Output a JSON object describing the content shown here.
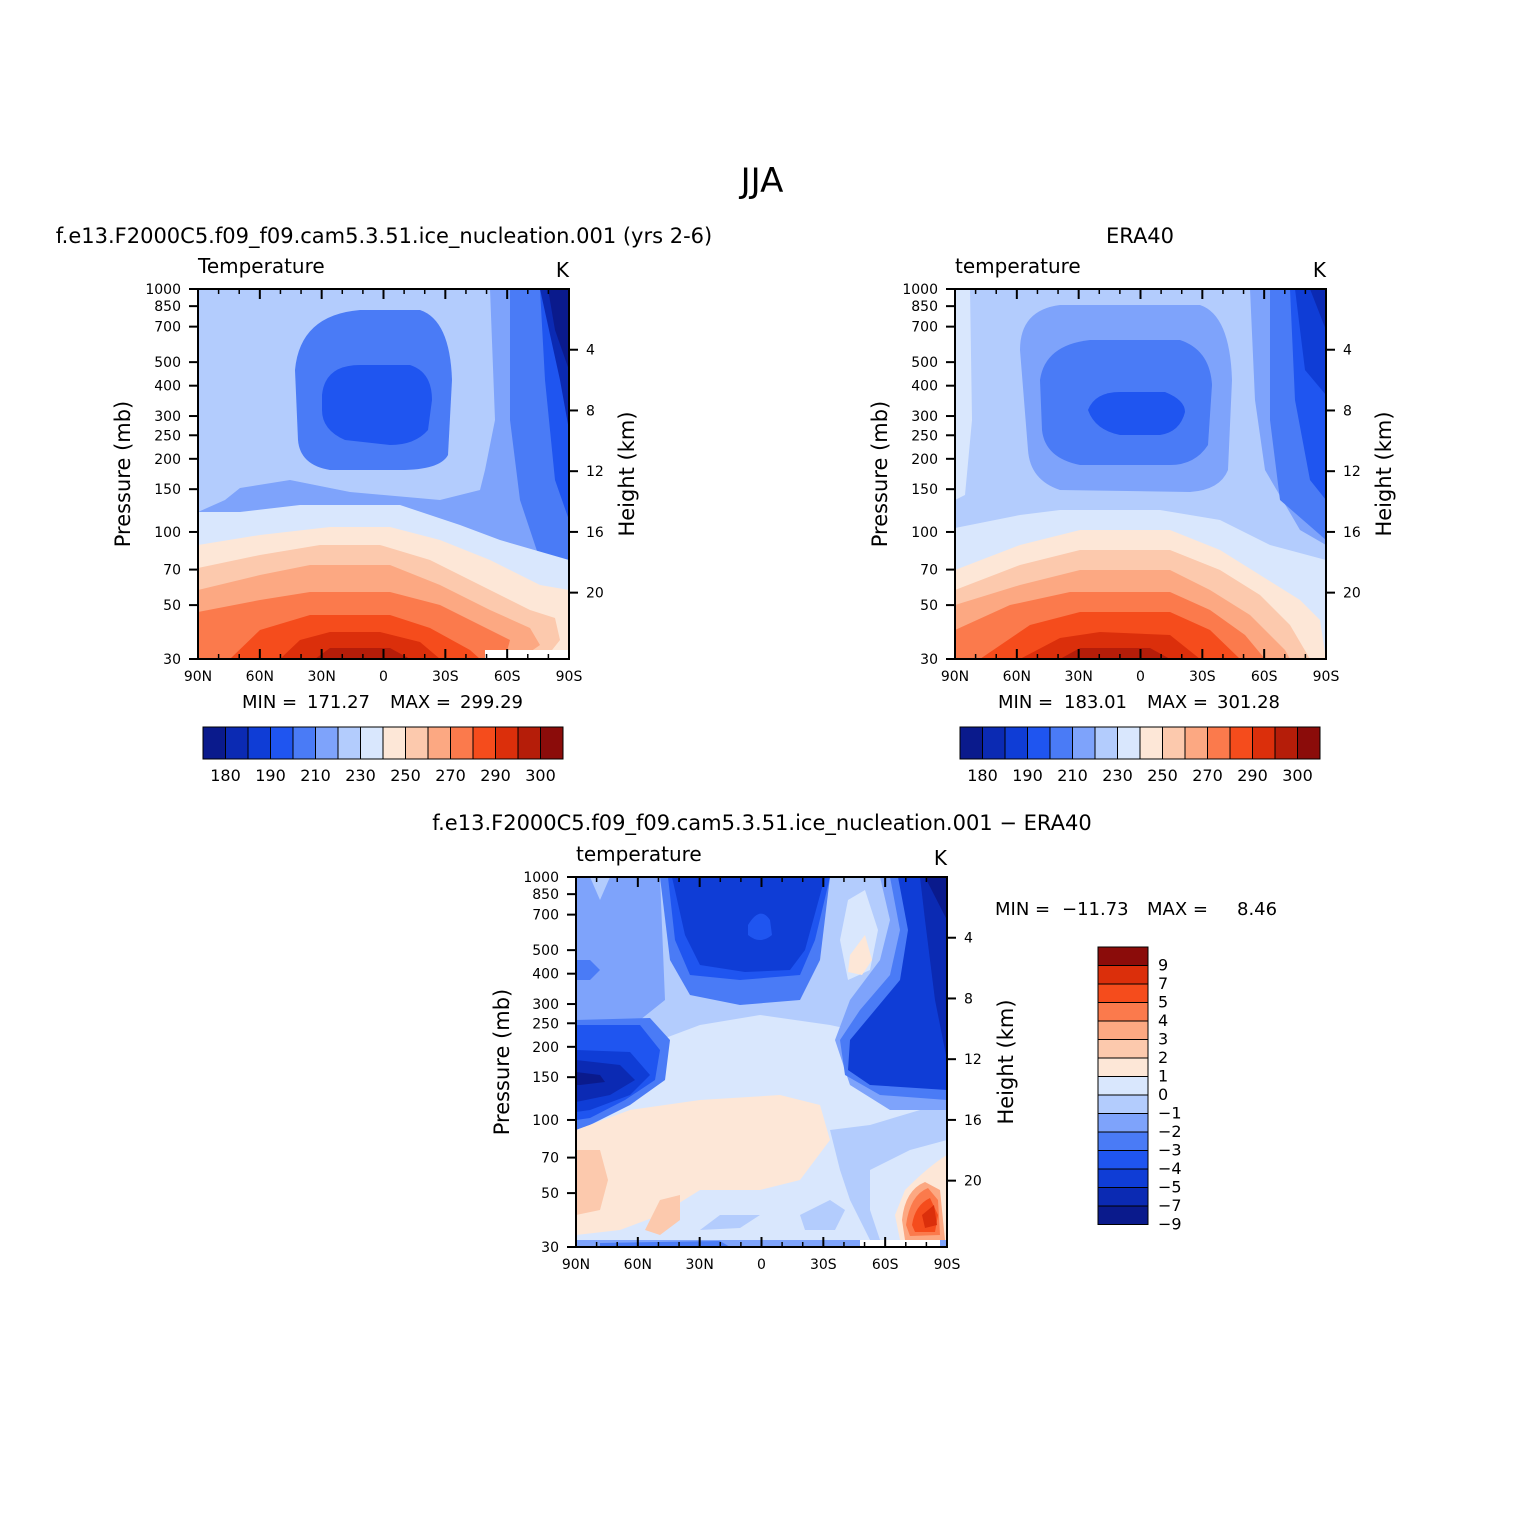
{
  "page": {
    "title": "JJA"
  },
  "colors": {
    "palette14": [
      "#0a1a8c",
      "#0b2ab3",
      "#0f3dd6",
      "#1f55f0",
      "#4a7bf6",
      "#7ea3fb",
      "#b3ccfd",
      "#d9e7fd",
      "#fde7d7",
      "#fcc9ad",
      "#fca882",
      "#fb7a4c",
      "#f54c1c",
      "#db2f0b",
      "#b51d09",
      "#8b0c0a"
    ],
    "diff13": [
      "#0a1a8c",
      "#0b2ab3",
      "#0f3dd6",
      "#1f55f0",
      "#4a7bf6",
      "#7ea3fb",
      "#b3ccfd",
      "#d9e7fd",
      "#fde7d7",
      "#fcc9ad",
      "#fca882",
      "#fb7a4c",
      "#f54c1c",
      "#db2f0b",
      "#8b0c0a"
    ]
  },
  "chart_data": [
    {
      "type": "heatmap",
      "id": "model",
      "title": "f.e13.F2000C5.f09_f09.cam5.3.51.ice_nucleation.001 (yrs 2-6)",
      "left_label": "Temperature",
      "right_label": "K",
      "xlabel": "",
      "ylabel": "Pressure (mb)",
      "ylabel_right": "Height (km)",
      "x_ticks": [
        "90N",
        "60N",
        "30N",
        "0",
        "30S",
        "60S",
        "90S"
      ],
      "x_values": [
        90,
        60,
        30,
        0,
        -30,
        -60,
        -90
      ],
      "y_ticks": [
        30,
        50,
        70,
        100,
        150,
        200,
        250,
        300,
        400,
        500,
        700,
        850,
        1000
      ],
      "y_right_ticks": [
        4,
        8,
        12,
        16,
        20
      ],
      "ylim": [
        1000,
        30
      ],
      "min_label": "MIN =",
      "min": "171.27",
      "max_label": "MAX =",
      "max": "299.29",
      "colorbar_labels": [
        "180",
        "190",
        "210",
        "230",
        "250",
        "270",
        "290",
        "300"
      ]
    },
    {
      "type": "heatmap",
      "id": "obs",
      "title": "ERA40",
      "left_label": "temperature",
      "right_label": "K",
      "ylabel": "Pressure (mb)",
      "ylabel_right": "Height (km)",
      "x_ticks": [
        "90N",
        "60N",
        "30N",
        "0",
        "30S",
        "60S",
        "90S"
      ],
      "y_ticks": [
        30,
        50,
        70,
        100,
        150,
        200,
        250,
        300,
        400,
        500,
        700,
        850,
        1000
      ],
      "y_right_ticks": [
        4,
        8,
        12,
        16,
        20
      ],
      "ylim": [
        1000,
        30
      ],
      "min_label": "MIN =",
      "min": "183.01",
      "max_label": "MAX =",
      "max": "301.28",
      "colorbar_labels": [
        "180",
        "190",
        "210",
        "230",
        "250",
        "270",
        "290",
        "300"
      ]
    },
    {
      "type": "heatmap",
      "id": "diff",
      "title": "f.e13.F2000C5.f09_f09.cam5.3.51.ice_nucleation.001 − ERA40",
      "left_label": "temperature",
      "right_label": "K",
      "ylabel": "Pressure (mb)",
      "ylabel_right": "Height (km)",
      "x_ticks": [
        "90N",
        "60N",
        "30N",
        "0",
        "30S",
        "60S",
        "90S"
      ],
      "y_ticks": [
        30,
        50,
        70,
        100,
        150,
        200,
        250,
        300,
        400,
        500,
        700,
        850,
        1000
      ],
      "y_right_ticks": [
        4,
        8,
        12,
        16,
        20
      ],
      "ylim": [
        1000,
        30
      ],
      "min_label": "MIN =",
      "min": "−11.73",
      "max_label": "MAX =",
      "max": "8.46",
      "colorbar_labels": [
        "9",
        "7",
        "5",
        "4",
        "3",
        "2",
        "1",
        "0",
        "−1",
        "−2",
        "−3",
        "−4",
        "−5",
        "−7",
        "−9"
      ]
    }
  ]
}
